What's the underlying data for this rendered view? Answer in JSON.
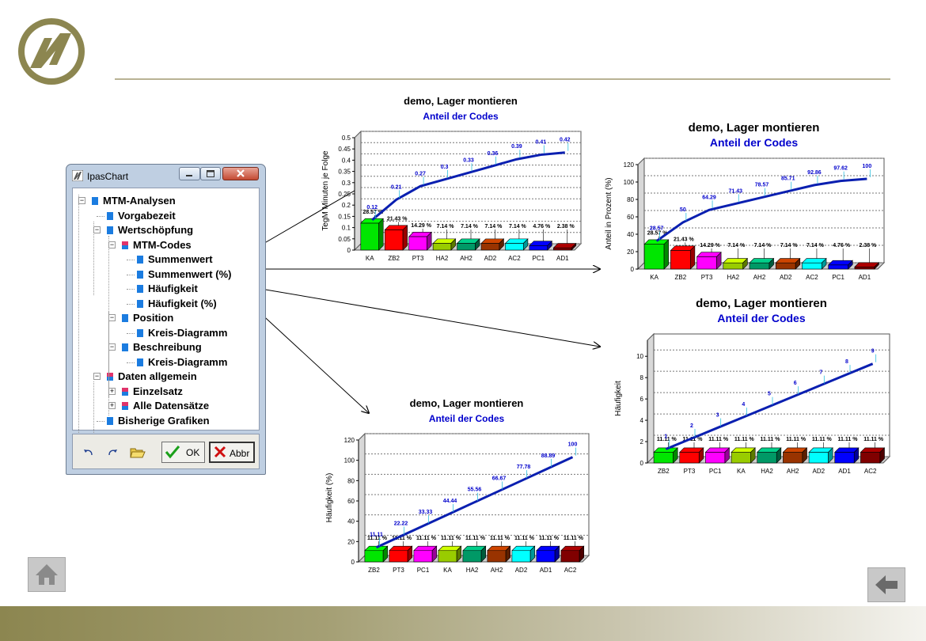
{
  "window": {
    "title": "IpasChart",
    "tree": [
      {
        "label": "MTM-Analysen",
        "level": 0,
        "icon": "blue-square-icon",
        "expanded": true
      },
      {
        "label": "Vorgabezeit",
        "level": 1,
        "icon": "blue-square-icon"
      },
      {
        "label": "Wertschöpfung",
        "level": 1,
        "icon": "blue-square-icon",
        "expanded": true
      },
      {
        "label": "MTM-Codes",
        "level": 2,
        "icon": "folder-square-icon",
        "expanded": true
      },
      {
        "label": "Summenwert",
        "level": 3,
        "icon": "blue-square-icon"
      },
      {
        "label": "Summenwert (%)",
        "level": 3,
        "icon": "blue-square-icon"
      },
      {
        "label": "Häufigkeit",
        "level": 3,
        "icon": "blue-square-icon"
      },
      {
        "label": "Häufigkeit (%)",
        "level": 3,
        "icon": "blue-square-icon"
      },
      {
        "label": "Position",
        "level": 2,
        "icon": "blue-square-icon",
        "expanded": true
      },
      {
        "label": "Kreis-Diagramm",
        "level": 3,
        "icon": "blue-square-icon"
      },
      {
        "label": "Beschreibung",
        "level": 2,
        "icon": "blue-square-icon",
        "expanded": true
      },
      {
        "label": "Kreis-Diagramm",
        "level": 3,
        "icon": "blue-square-icon"
      },
      {
        "label": "Daten allgemein",
        "level": 1,
        "icon": "folder-square-icon",
        "expanded": true
      },
      {
        "label": "Einzelsatz",
        "level": 2,
        "icon": "folder-square-icon",
        "expanded": false
      },
      {
        "label": "Alle Datensätze",
        "level": 2,
        "icon": "folder-square-icon",
        "expanded": false
      },
      {
        "label": "Bisherige Grafiken",
        "level": 1,
        "icon": "blue-square-icon"
      }
    ],
    "ok_label": "OK",
    "cancel_label": "Abbr"
  },
  "colors": {
    "accent_olive": "#8c8650",
    "bar_colors": [
      "#00e600",
      "#ff0000",
      "#ff00ff",
      "#99cc00",
      "#009966",
      "#993300",
      "#00ffff",
      "#0000ff",
      "#800000"
    ],
    "curve": "#0a1fb0",
    "chart_subtitle": "#0000cc"
  },
  "chart_data": [
    {
      "type": "bar",
      "title": "demo, Lager montieren",
      "subtitle": "Anteil der Codes",
      "ylabel": "TegM Minuten je Folge",
      "xlabel": "",
      "categories": [
        "KA",
        "ZB2",
        "PT3",
        "HA2",
        "AH2",
        "AD2",
        "AC2",
        "PC1",
        "AD1"
      ],
      "values": [
        0.12,
        0.09,
        0.06,
        0.03,
        0.03,
        0.03,
        0.03,
        0.02,
        0.01
      ],
      "bar_labels": [
        "28.57 %",
        "21.43 %",
        "14.29 %",
        "7.14 %",
        "7.14 %",
        "7.14 %",
        "7.14 %",
        "4.76 %",
        "2.38 %"
      ],
      "cumulative": [
        0.12,
        0.21,
        0.27,
        0.3,
        0.33,
        0.36,
        0.39,
        0.41,
        0.42
      ],
      "cumulative_labels": [
        "0.12",
        "0.21",
        "0.27",
        "0.3",
        "0.33",
        "0.36",
        "0.39",
        "0.41",
        "0.42"
      ],
      "yticks": [
        "0",
        "0.05",
        "0.1",
        "0.15",
        "0.2",
        "0.25",
        "0.3",
        "0.35",
        "0.4",
        "0.45",
        "0.5"
      ],
      "ylim": [
        0,
        0.5
      ],
      "grid": true
    },
    {
      "type": "bar",
      "title": "demo, Lager montieren",
      "subtitle": "Anteil der Codes",
      "ylabel": "Anteil in Prozent (%)",
      "xlabel": "",
      "categories": [
        "KA",
        "ZB2",
        "PT3",
        "HA2",
        "AH2",
        "AD2",
        "AC2",
        "PC1",
        "AD1"
      ],
      "values": [
        28.57,
        21.43,
        14.29,
        7.14,
        7.14,
        7.14,
        7.14,
        4.76,
        2.38
      ],
      "bar_labels": [
        "28.57 %",
        "21.43 %",
        "14.29 %",
        "7.14 %",
        "7.14 %",
        "7.14 %",
        "7.14 %",
        "4.76 %",
        "2.38 %"
      ],
      "cumulative": [
        28.57,
        50,
        64.29,
        71.43,
        78.57,
        85.71,
        92.86,
        97.62,
        100
      ],
      "cumulative_labels": [
        "28.57",
        "50",
        "64.29",
        "71.43",
        "78.57",
        "85.71",
        "92.86",
        "97.62",
        "100"
      ],
      "yticks": [
        "0",
        "20",
        "40",
        "60",
        "80",
        "100",
        "120"
      ],
      "ylim": [
        0,
        120
      ],
      "grid": true
    },
    {
      "type": "bar",
      "title": "demo, Lager montieren",
      "subtitle": "Anteil der Codes",
      "ylabel": "Häufigkeit",
      "xlabel": "",
      "categories": [
        "ZB2",
        "PT3",
        "PC1",
        "KA",
        "HA2",
        "AH2",
        "AD2",
        "AD1",
        "AC2"
      ],
      "values": [
        1,
        1,
        1,
        1,
        1,
        1,
        1,
        1,
        1
      ],
      "bar_labels": [
        "11.11 %",
        "11.11 %",
        "11.11 %",
        "11.11 %",
        "11.11 %",
        "11.11 %",
        "11.11 %",
        "11.11 %",
        "11.11 %"
      ],
      "cumulative": [
        1,
        2,
        3,
        4,
        5,
        6,
        7,
        8,
        9
      ],
      "cumulative_labels": [
        "1",
        "2",
        "3",
        "4",
        "5",
        "6",
        "7",
        "8",
        "9"
      ],
      "yticks": [
        "0",
        "2",
        "4",
        "6",
        "8",
        "10"
      ],
      "ylim": [
        0,
        11.5
      ],
      "grid": true
    },
    {
      "type": "bar",
      "title": "demo, Lager montieren",
      "subtitle": "Anteil der Codes",
      "ylabel": "Häufigkeit (%)",
      "xlabel": "",
      "categories": [
        "ZB2",
        "PT3",
        "PC1",
        "KA",
        "HA2",
        "AH2",
        "AD2",
        "AD1",
        "AC2"
      ],
      "values": [
        11.11,
        11.11,
        11.11,
        11.11,
        11.11,
        11.11,
        11.11,
        11.11,
        11.11
      ],
      "bar_labels": [
        "11.11 %",
        "11.11 %",
        "11.11 %",
        "11.11 %",
        "11.11 %",
        "11.11 %",
        "11.11 %",
        "11.11 %",
        "11.11 %"
      ],
      "cumulative": [
        11.11,
        22.22,
        33.33,
        44.44,
        55.56,
        66.67,
        77.78,
        88.89,
        100
      ],
      "cumulative_labels": [
        "11.11",
        "22.22",
        "33.33",
        "44.44",
        "55.56",
        "66.67",
        "77.78",
        "88.89",
        "100"
      ],
      "yticks": [
        "0",
        "20",
        "40",
        "60",
        "80",
        "100",
        "120"
      ],
      "ylim": [
        0,
        120
      ],
      "grid": true
    }
  ]
}
